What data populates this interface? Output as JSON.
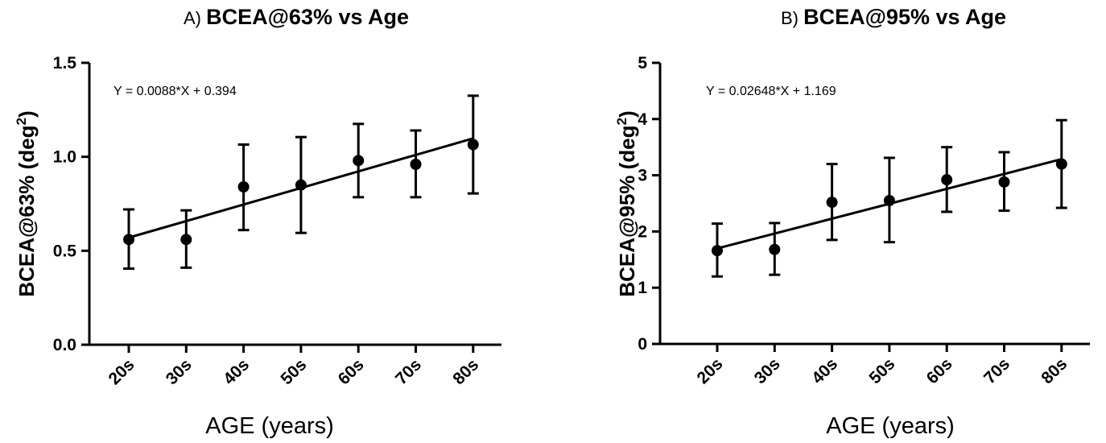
{
  "chart_data": [
    {
      "type": "scatter",
      "panel_label": "A)",
      "title": "BCEA@63% vs Age",
      "xlabel": "AGE (years)",
      "ylabel": "BCEA@63% (deg",
      "ylabel_sup": "2",
      "ylabel_close": ")",
      "ylim": [
        0,
        1.5
      ],
      "yticks": [
        0.0,
        0.5,
        1.0,
        1.5
      ],
      "ytick_labels": [
        "0.0",
        "0.5",
        "1.0",
        "1.5"
      ],
      "categories": [
        "20s",
        "30s",
        "40s",
        "50s",
        "60s",
        "70s",
        "80s"
      ],
      "values": [
        0.56,
        0.56,
        0.84,
        0.85,
        0.98,
        0.96,
        1.065
      ],
      "error_upper": [
        0.72,
        0.715,
        1.065,
        1.105,
        1.175,
        1.14,
        1.325
      ],
      "error_lower": [
        0.405,
        0.41,
        0.61,
        0.595,
        0.785,
        0.785,
        0.805
      ],
      "fit": {
        "slope": 0.0088,
        "intercept": 0.394,
        "equation": "Y = 0.0088*X + 0.394",
        "x_start": 20,
        "x_step": 10
      }
    },
    {
      "type": "scatter",
      "panel_label": "B)",
      "title": "BCEA@95% vs Age",
      "xlabel": "AGE (years)",
      "ylabel": "BCEA@95% (deg",
      "ylabel_sup": "2",
      "ylabel_close": ")",
      "ylim": [
        0,
        5
      ],
      "yticks": [
        0,
        1,
        2,
        3,
        4,
        5
      ],
      "ytick_labels": [
        "0",
        "1",
        "2",
        "3",
        "4",
        "5"
      ],
      "categories": [
        "20s",
        "30s",
        "40s",
        "50s",
        "60s",
        "70s",
        "80s"
      ],
      "values": [
        1.66,
        1.68,
        2.52,
        2.55,
        2.92,
        2.88,
        3.2
      ],
      "error_upper": [
        2.14,
        2.15,
        3.2,
        3.31,
        3.5,
        3.41,
        3.98
      ],
      "error_lower": [
        1.2,
        1.23,
        1.85,
        1.81,
        2.35,
        2.37,
        2.42
      ],
      "fit": {
        "slope": 0.02648,
        "intercept": 1.169,
        "equation": "Y = 0.02648*X + 1.169",
        "x_start": 20,
        "x_step": 10
      }
    }
  ]
}
